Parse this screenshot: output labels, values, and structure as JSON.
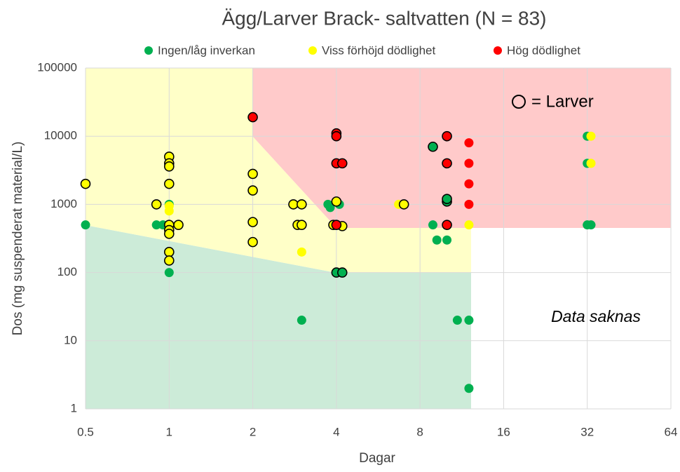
{
  "chart_data": {
    "type": "scatter",
    "title": "Ägg/Larver Brack- saltvatten (N = 83)",
    "xlabel": "Dagar",
    "ylabel": "Dos (mg suspenderat material/L)",
    "annotations": [
      "= Larver",
      "Data saknas"
    ],
    "xscale": "log2",
    "yscale": "log",
    "xlim": [
      0.5,
      64
    ],
    "ylim": [
      1,
      100000
    ],
    "xticks": [
      0.5,
      1,
      2,
      4,
      8,
      16,
      32,
      64
    ],
    "yticks": [
      1,
      10,
      100,
      1000,
      10000,
      100000
    ],
    "grid": true,
    "legend": "top",
    "series": [
      {
        "name": "Ingen/låg inverkan",
        "color": "#00b050",
        "x": [
          0.5,
          0.9,
          0.95,
          1,
          1,
          3,
          3.73,
          3.8,
          4,
          4.2,
          4.1,
          8.9,
          8.9,
          9.2,
          10,
          10,
          10,
          10.9,
          12,
          12,
          32,
          32,
          32,
          33
        ],
        "values": [
          500,
          500,
          500,
          1000,
          100,
          20,
          1000,
          900,
          100,
          100,
          1000,
          7000,
          500,
          300,
          300,
          1100,
          1200,
          20,
          20,
          2,
          10000,
          4000,
          500,
          500
        ],
        "outlined": [
          false,
          false,
          false,
          false,
          false,
          false,
          false,
          false,
          true,
          true,
          false,
          true,
          false,
          false,
          false,
          true,
          true,
          false,
          false,
          false,
          false,
          false,
          false,
          false
        ]
      },
      {
        "name": "Viss förhöjd dödlighet",
        "color": "#ffff00",
        "x": [
          0.5,
          0.9,
          1,
          1,
          1,
          1,
          1,
          1,
          1,
          1,
          1,
          1,
          1,
          1.08,
          2,
          2,
          2,
          2,
          2.8,
          3,
          2.9,
          3,
          3,
          3.9,
          4,
          4.2,
          6.7,
          7,
          12,
          33,
          33
        ],
        "values": [
          2000,
          1000,
          5000,
          4000,
          3600,
          2000,
          950,
          800,
          500,
          420,
          370,
          200,
          150,
          500,
          2800,
          1600,
          550,
          280,
          1000,
          1000,
          500,
          500,
          200,
          500,
          1100,
          480,
          1000,
          1000,
          500,
          10000,
          4000
        ],
        "outlined": [
          true,
          true,
          true,
          true,
          true,
          true,
          false,
          false,
          true,
          true,
          true,
          true,
          true,
          true,
          true,
          true,
          true,
          true,
          true,
          true,
          true,
          true,
          false,
          true,
          true,
          true,
          false,
          true,
          false,
          false,
          false
        ]
      },
      {
        "name": "Hög dödlighet",
        "color": "#ff0000",
        "x": [
          2,
          4,
          4,
          4,
          4.2,
          4,
          10,
          10,
          10,
          12,
          12,
          12,
          12
        ],
        "values": [
          19000,
          11000,
          10000,
          4000,
          4000,
          500,
          10000,
          4000,
          500,
          8000,
          4000,
          2000,
          1000
        ],
        "outlined": [
          true,
          true,
          true,
          true,
          true,
          true,
          true,
          true,
          true,
          false,
          false,
          false,
          false
        ]
      }
    ]
  }
}
